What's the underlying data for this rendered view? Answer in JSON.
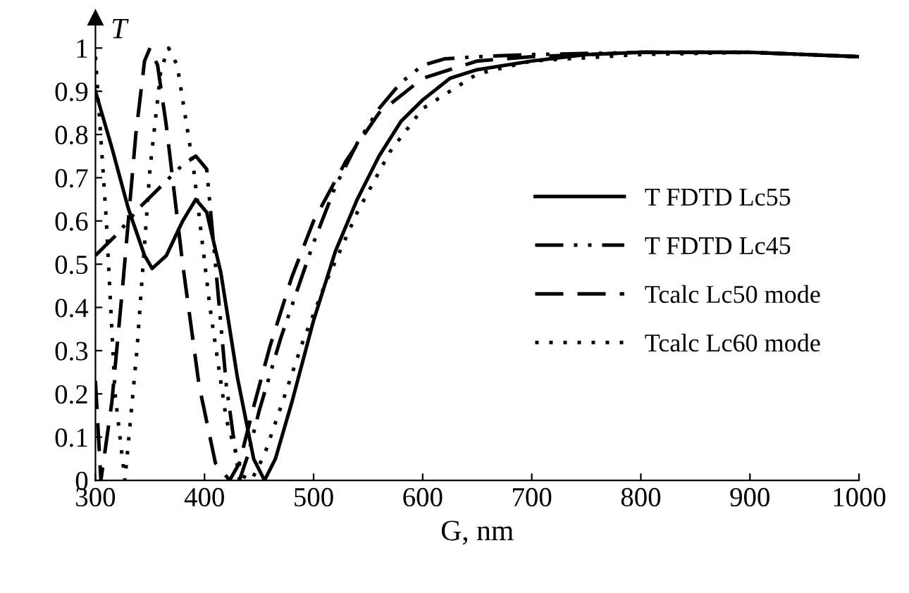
{
  "chart_data": {
    "type": "line",
    "xlabel": "G, nm",
    "ylabel": "T",
    "xlim": [
      300,
      1000
    ],
    "ylim": [
      0,
      1.07
    ],
    "xticks": [
      300,
      400,
      500,
      600,
      700,
      800,
      900,
      1000
    ],
    "yticks": [
      0,
      0.1,
      0.2,
      0.3,
      0.4,
      0.5,
      0.6,
      0.7,
      0.8,
      0.9,
      1
    ],
    "grid": false,
    "legend": "right",
    "marker": "none",
    "series": [
      {
        "name": "T FDTD Lc55",
        "color": "#000000",
        "line_style": "solid",
        "x": [
          300,
          315,
          330,
          345,
          352,
          365,
          380,
          392,
          402,
          415,
          430,
          445,
          455,
          465,
          480,
          500,
          520,
          540,
          560,
          580,
          600,
          625,
          650,
          700,
          750,
          800,
          900,
          1000
        ],
        "values": [
          0.9,
          0.77,
          0.63,
          0.52,
          0.49,
          0.52,
          0.6,
          0.65,
          0.62,
          0.48,
          0.24,
          0.05,
          0.0,
          0.05,
          0.18,
          0.37,
          0.53,
          0.65,
          0.75,
          0.83,
          0.88,
          0.93,
          0.95,
          0.97,
          0.985,
          0.99,
          0.99,
          0.98
        ]
      },
      {
        "name": "T FDTD Lc45",
        "color": "#000000",
        "line_style": "dashdot",
        "x": [
          300,
          320,
          340,
          360,
          380,
          392,
          402,
          410,
          420,
          432,
          440,
          450,
          470,
          500,
          520,
          540,
          560,
          580,
          600,
          620,
          650,
          700,
          800,
          900,
          1000
        ],
        "values": [
          0.52,
          0.57,
          0.63,
          0.68,
          0.73,
          0.75,
          0.72,
          0.5,
          0.22,
          0.0,
          0.06,
          0.16,
          0.33,
          0.55,
          0.68,
          0.78,
          0.86,
          0.92,
          0.96,
          0.975,
          0.98,
          0.985,
          0.99,
          0.99,
          0.98
        ]
      },
      {
        "name": "Tcalc Lc50 mode",
        "color": "#000000",
        "line_style": "dashed",
        "x": [
          300,
          305,
          315,
          325,
          337,
          345,
          350,
          357,
          365,
          380,
          395,
          410,
          423,
          432,
          445,
          460,
          480,
          500,
          530,
          560,
          600,
          650,
          700,
          800,
          900,
          1000
        ],
        "values": [
          0.23,
          0.0,
          0.18,
          0.45,
          0.8,
          0.97,
          1.0,
          0.96,
          0.82,
          0.5,
          0.22,
          0.04,
          0.0,
          0.04,
          0.17,
          0.31,
          0.47,
          0.6,
          0.74,
          0.85,
          0.93,
          0.97,
          0.98,
          0.99,
          0.99,
          0.98
        ]
      },
      {
        "name": "Tcalc Lc60 mode",
        "color": "#000000",
        "line_style": "dotted",
        "x": [
          300,
          310,
          318,
          327,
          338,
          350,
          360,
          367,
          375,
          390,
          405,
          420,
          435,
          443,
          455,
          470,
          490,
          510,
          540,
          570,
          600,
          650,
          700,
          800,
          900,
          1000
        ],
        "values": [
          0.98,
          0.6,
          0.2,
          0.0,
          0.3,
          0.72,
          0.95,
          1.0,
          0.96,
          0.72,
          0.4,
          0.14,
          0.01,
          0.0,
          0.06,
          0.17,
          0.32,
          0.45,
          0.62,
          0.76,
          0.86,
          0.94,
          0.97,
          0.985,
          0.99,
          0.98
        ]
      }
    ]
  }
}
